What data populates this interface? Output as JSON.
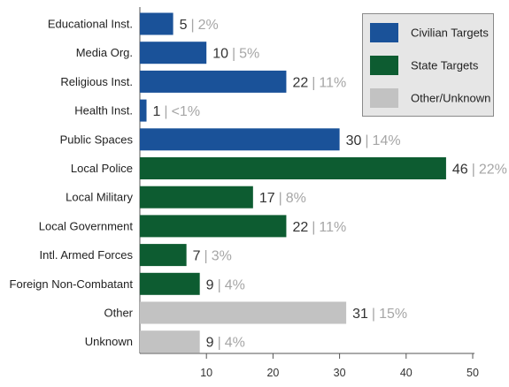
{
  "chart_data": {
    "type": "bar",
    "orientation": "horizontal",
    "categories": [
      "Educational Inst.",
      "Media Org.",
      "Religious Inst.",
      "Health Inst.",
      "Public Spaces",
      "Local Police",
      "Local Military",
      "Local Government",
      "Intl. Armed Forces",
      "Foreign Non-Combatant",
      "Other",
      "Unknown"
    ],
    "values": [
      5,
      10,
      22,
      1,
      30,
      46,
      17,
      22,
      7,
      9,
      31,
      9
    ],
    "percent_labels": [
      "2%",
      "5%",
      "11%",
      "<1%",
      "14%",
      "22%",
      "8%",
      "11%",
      "3%",
      "4%",
      "15%",
      "4%"
    ],
    "groups": [
      "Civilian Targets",
      "Civilian Targets",
      "Civilian Targets",
      "Civilian Targets",
      "Civilian Targets",
      "State Targets",
      "State Targets",
      "State Targets",
      "State Targets",
      "State Targets",
      "Other/Unknown",
      "Other/Unknown"
    ],
    "legend": [
      {
        "name": "Civilian Targets",
        "color": "#1a5299"
      },
      {
        "name": "State Targets",
        "color": "#0d5c31"
      },
      {
        "name": "Other/Unknown",
        "color": "#c2c2c2"
      }
    ],
    "xticks": [
      10,
      20,
      30,
      40,
      50
    ],
    "xlim": [
      0,
      50
    ],
    "title": "",
    "xlabel": "",
    "ylabel": "",
    "grid": false,
    "legend_position": "top-right"
  },
  "separator": "|"
}
